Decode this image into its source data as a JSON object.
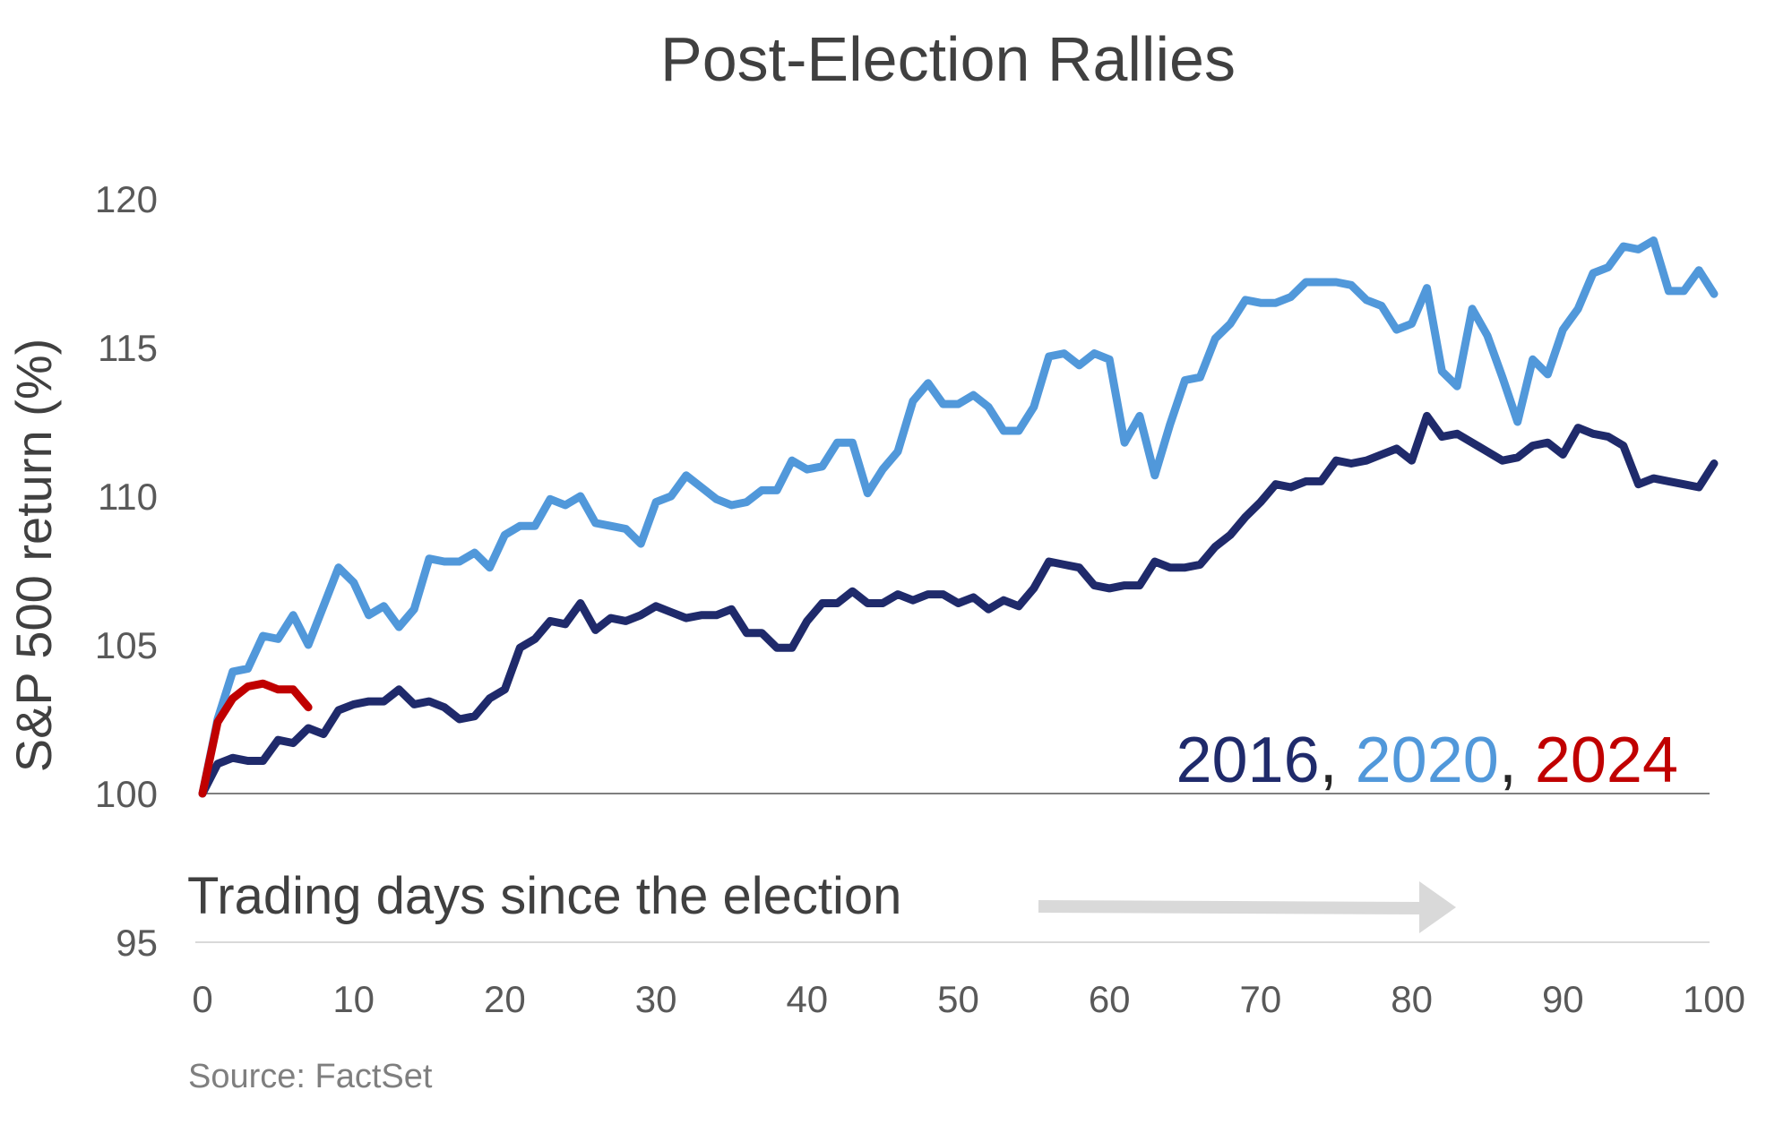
{
  "chart_data": {
    "type": "line",
    "title": "Post-Election Rallies",
    "xlabel": "Trading days since the election",
    "ylabel": "S&P 500 return (%)",
    "source": "Source: FactSet",
    "xlim": [
      0,
      100
    ],
    "ylim": [
      95,
      120
    ],
    "x_ticks": [
      0,
      10,
      20,
      30,
      40,
      50,
      60,
      70,
      80,
      90,
      100
    ],
    "y_ticks": [
      95,
      100,
      105,
      110,
      115,
      120
    ],
    "grid": "horizontal gridline at 95; baseline at 100",
    "legend": {
      "placement": "lower-right, inside plot",
      "entries": [
        {
          "label": "2016",
          "color": "#1f2a6b"
        },
        {
          "label": "2020",
          "color": "#5198da"
        },
        {
          "label": "2024",
          "color": "#c00000"
        }
      ],
      "separator": ", "
    },
    "series": [
      {
        "name": "2016",
        "color": "#1f2a6b",
        "x_start": 0,
        "values": [
          100,
          101.0,
          101.2,
          101.1,
          101.1,
          101.8,
          101.7,
          102.2,
          102.0,
          102.8,
          103.0,
          103.1,
          103.1,
          103.5,
          103.0,
          103.1,
          102.9,
          102.5,
          102.6,
          103.2,
          103.5,
          104.9,
          105.2,
          105.8,
          105.7,
          106.4,
          105.5,
          105.9,
          105.8,
          106.0,
          106.3,
          106.1,
          105.9,
          106.0,
          106.0,
          106.2,
          105.4,
          105.4,
          104.9,
          104.9,
          105.8,
          106.4,
          106.4,
          106.8,
          106.4,
          106.4,
          106.7,
          106.5,
          106.7,
          106.7,
          106.4,
          106.6,
          106.2,
          106.5,
          106.3,
          106.9,
          107.8,
          107.7,
          107.6,
          107.0,
          106.9,
          107.0,
          107.0,
          107.8,
          107.6,
          107.6,
          107.7,
          108.3,
          108.7,
          109.3,
          109.8,
          110.4,
          110.3,
          110.5,
          110.5,
          111.2,
          111.1,
          111.2,
          111.4,
          111.6,
          111.2,
          112.7,
          112.0,
          112.1,
          111.8,
          111.5,
          111.2,
          111.3,
          111.7,
          111.8,
          111.4,
          112.3,
          112.1,
          112.0,
          111.7,
          110.4,
          110.6,
          110.5,
          110.4,
          110.3,
          111.1
        ]
      },
      {
        "name": "2020",
        "color": "#5198da",
        "x_start": 0,
        "values": [
          100,
          102.5,
          104.1,
          104.2,
          105.3,
          105.2,
          106.0,
          105.0,
          106.3,
          107.6,
          107.1,
          106.0,
          106.3,
          105.6,
          106.2,
          107.9,
          107.8,
          107.8,
          108.1,
          107.6,
          108.7,
          109.0,
          109.0,
          109.9,
          109.7,
          110.0,
          109.1,
          109.0,
          108.9,
          108.4,
          109.8,
          110.0,
          110.7,
          110.3,
          109.9,
          109.7,
          109.8,
          110.2,
          110.2,
          111.2,
          110.9,
          111.0,
          111.8,
          111.8,
          110.1,
          110.9,
          111.5,
          113.2,
          113.8,
          113.1,
          113.1,
          113.4,
          113.0,
          112.2,
          112.2,
          113.0,
          114.7,
          114.8,
          114.4,
          114.8,
          114.6,
          111.8,
          112.7,
          110.7,
          112.4,
          113.9,
          114.0,
          115.3,
          115.8,
          116.6,
          116.5,
          116.5,
          116.7,
          117.2,
          117.2,
          117.2,
          117.1,
          116.6,
          116.4,
          115.6,
          115.8,
          117.0,
          114.2,
          113.7,
          116.3,
          115.4,
          114.0,
          112.5,
          114.6,
          114.1,
          115.6,
          116.3,
          117.5,
          117.7,
          118.4,
          118.3,
          118.6,
          116.9,
          116.9,
          117.6,
          116.8
        ]
      },
      {
        "name": "2024",
        "color": "#c00000",
        "x_start": 0,
        "values": [
          100,
          102.4,
          103.2,
          103.6,
          103.7,
          103.5,
          103.5,
          102.9
        ]
      }
    ],
    "annotations": [
      {
        "text": "Trading days since the election",
        "with_arrow": true,
        "arrow_direction": "right",
        "arrow_color": "#d9d9d9"
      }
    ]
  }
}
